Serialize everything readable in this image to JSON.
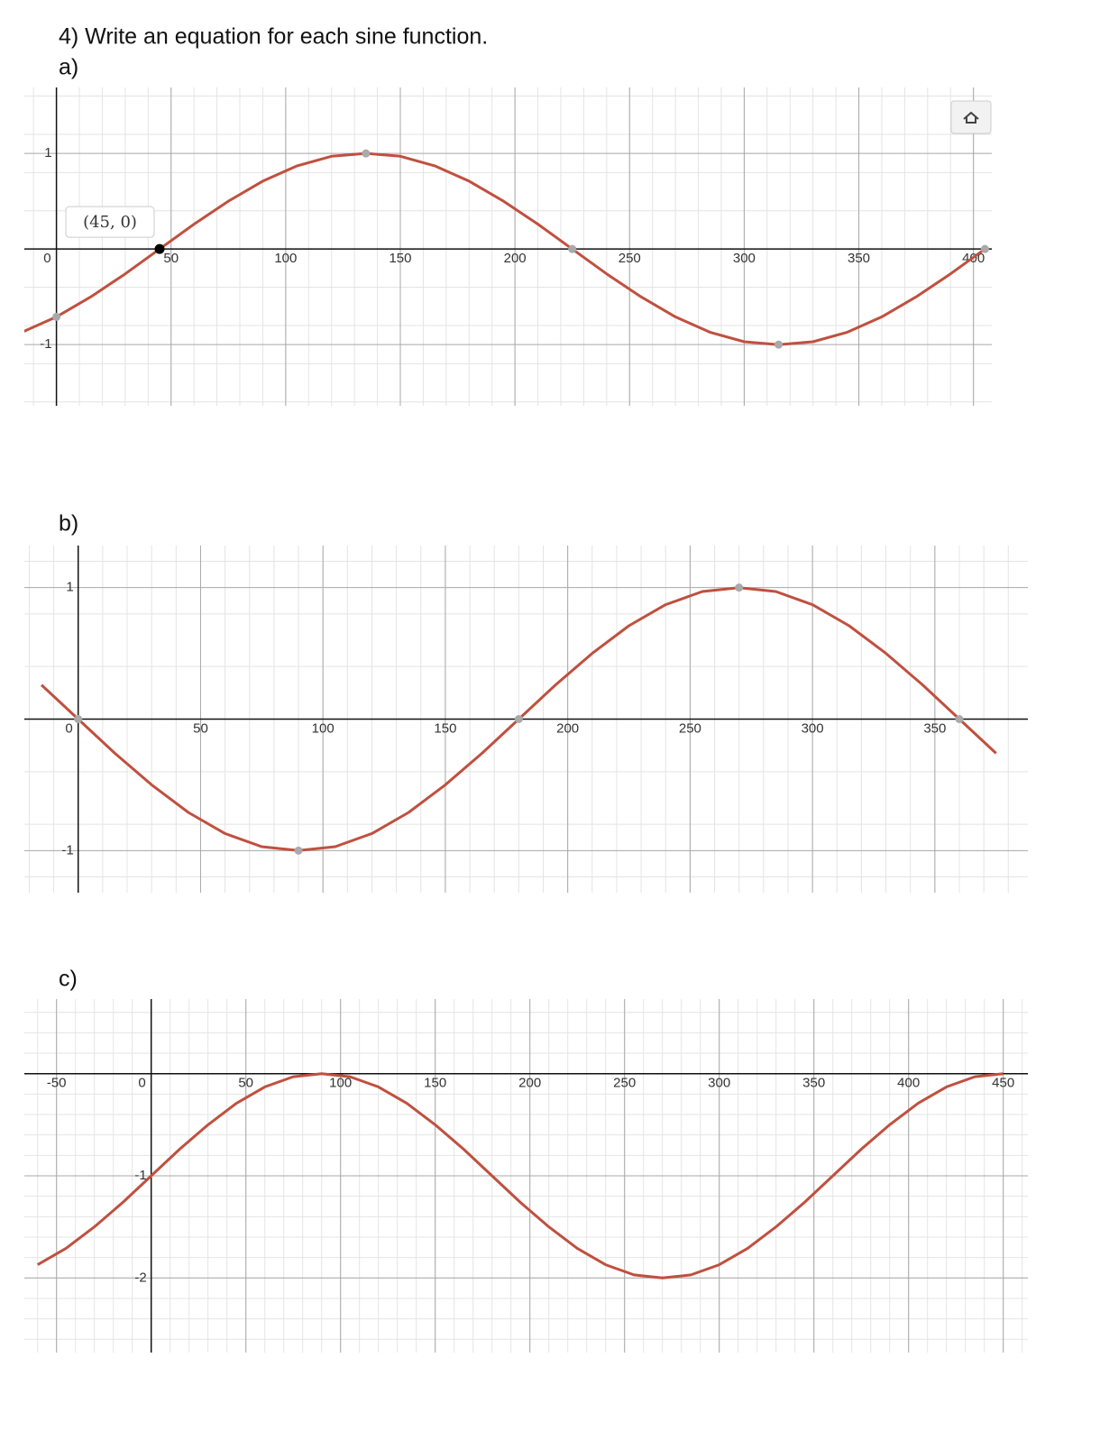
{
  "header": {
    "title": "4) Write an equation for each sine function."
  },
  "chart_data": [
    {
      "type": "line",
      "label": "a)",
      "color": "#c0503f",
      "x": [
        -15,
        0,
        15,
        30,
        45,
        60,
        75,
        90,
        105,
        120,
        135,
        150,
        165,
        180,
        195,
        210,
        225,
        240,
        255,
        270,
        285,
        300,
        315,
        330,
        345,
        360,
        375,
        390,
        405
      ],
      "values": [
        -0.87,
        -0.71,
        -0.5,
        -0.26,
        0,
        0.26,
        0.5,
        0.71,
        0.87,
        0.97,
        1,
        0.97,
        0.87,
        0.71,
        0.5,
        0.26,
        0,
        -0.26,
        -0.5,
        -0.71,
        -0.87,
        -0.97,
        -1,
        -0.97,
        -0.87,
        -0.71,
        -0.5,
        -0.26,
        0
      ],
      "points": {
        "x": [
          0,
          135,
          225,
          315,
          405
        ],
        "y": [
          -0.71,
          1,
          0,
          -1,
          0
        ]
      },
      "annotation": {
        "label": "(45, 0)",
        "x": 45,
        "y": 0
      },
      "xlim": [
        -14,
        408
      ],
      "ylim": [
        -1.64,
        1.69
      ],
      "xticks": [
        0,
        50,
        100,
        150,
        200,
        250,
        300,
        350,
        400
      ],
      "yticks": [
        -1,
        1
      ],
      "grid": true
    },
    {
      "type": "line",
      "label": "b)",
      "color": "#c0503f",
      "x": [
        -15,
        0,
        15,
        30,
        45,
        60,
        75,
        90,
        105,
        120,
        135,
        150,
        165,
        180,
        195,
        210,
        225,
        240,
        255,
        270,
        285,
        300,
        315,
        330,
        345,
        360,
        375
      ],
      "values": [
        0.26,
        0,
        -0.26,
        -0.5,
        -0.71,
        -0.87,
        -0.97,
        -1,
        -0.97,
        -0.87,
        -0.71,
        -0.5,
        -0.26,
        0,
        0.26,
        0.5,
        0.71,
        0.87,
        0.97,
        1,
        0.97,
        0.87,
        0.71,
        0.5,
        0.26,
        0,
        -0.26
      ],
      "points": {
        "x": [
          0,
          90,
          180,
          270,
          360
        ],
        "y": [
          0,
          -1,
          0,
          1,
          0
        ]
      },
      "xlim": [
        -22,
        388
      ],
      "ylim": [
        -1.32,
        1.32
      ],
      "xticks": [
        0,
        50,
        100,
        150,
        200,
        250,
        300,
        350
      ],
      "yticks": [
        -1,
        1
      ],
      "grid": true
    },
    {
      "type": "line",
      "label": "c)",
      "color": "#c0503f",
      "x": [
        -60,
        -45,
        -30,
        -15,
        0,
        15,
        30,
        45,
        60,
        75,
        90,
        105,
        120,
        135,
        150,
        165,
        180,
        195,
        210,
        225,
        240,
        255,
        270,
        285,
        300,
        315,
        330,
        345,
        360,
        375,
        390,
        405,
        420,
        435,
        450
      ],
      "values": [
        -1.87,
        -1.71,
        -1.5,
        -1.26,
        -1,
        -0.74,
        -0.5,
        -0.29,
        -0.13,
        -0.03,
        0,
        -0.03,
        -0.13,
        -0.29,
        -0.5,
        -0.74,
        -1,
        -1.26,
        -1.5,
        -1.71,
        -1.87,
        -1.97,
        -2,
        -1.97,
        -1.87,
        -1.71,
        -1.5,
        -1.26,
        -1,
        -0.74,
        -0.5,
        -0.29,
        -0.13,
        -0.03,
        0
      ],
      "xlim": [
        -67,
        463
      ],
      "ylim": [
        -2.73,
        0.73
      ],
      "xticks": [
        -50,
        0,
        50,
        100,
        150,
        200,
        250,
        300,
        350,
        400,
        450
      ],
      "yticks": [
        -2,
        -1
      ],
      "grid": true
    }
  ]
}
